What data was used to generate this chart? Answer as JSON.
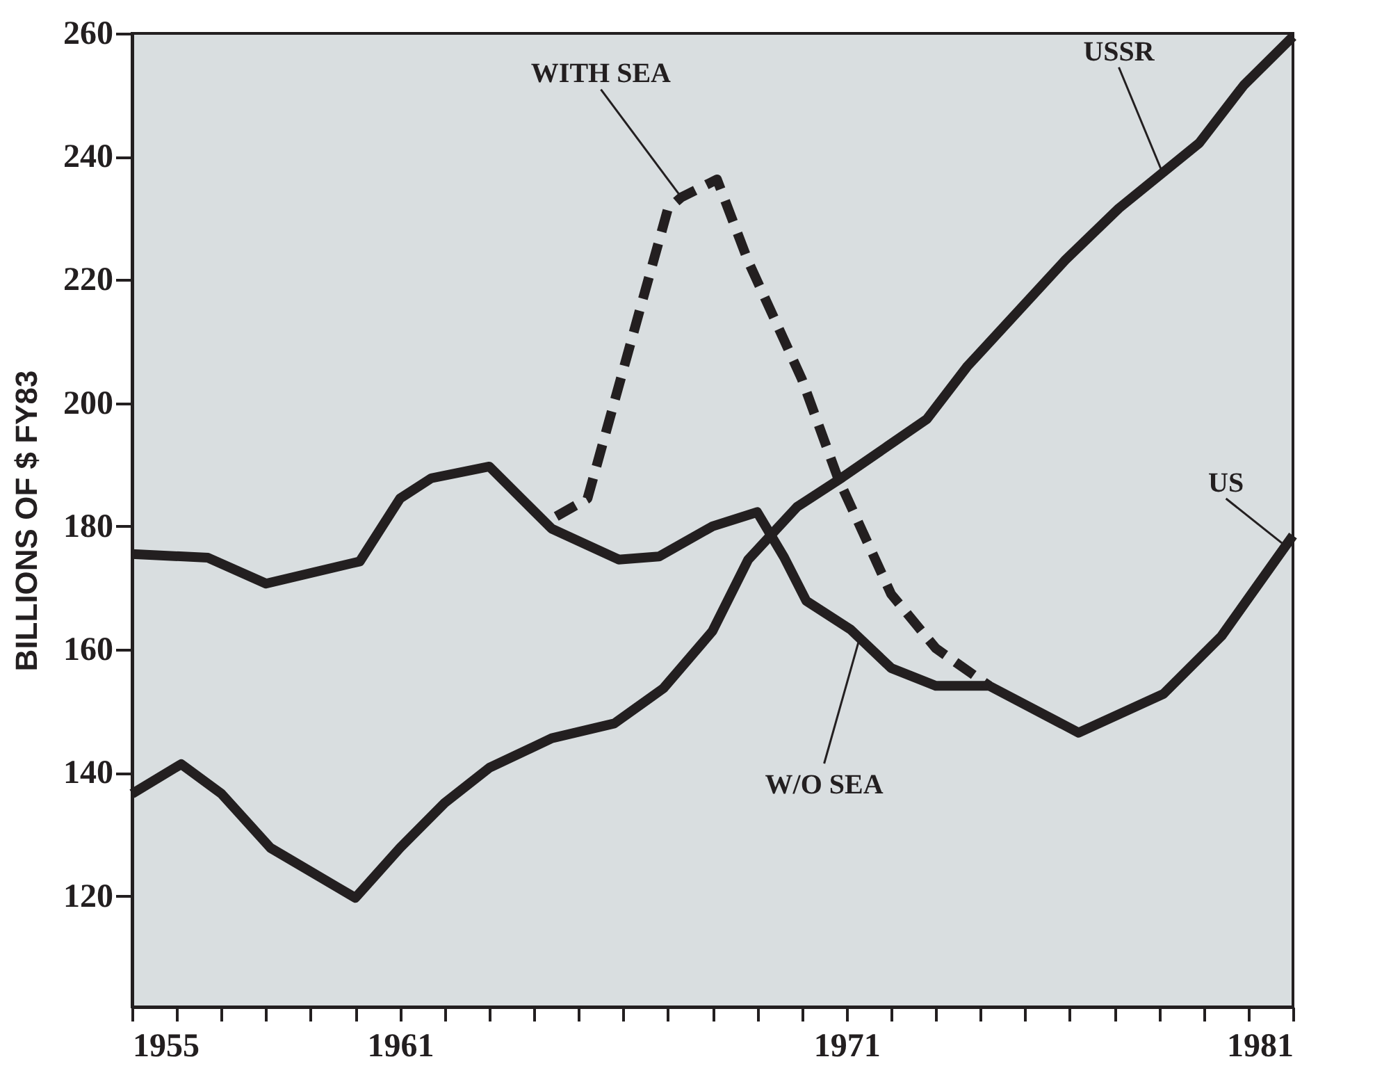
{
  "chart_data": {
    "type": "line",
    "ylabel": "BILLIONS OF $ FY83",
    "xlim": [
      1955,
      1981
    ],
    "ylim": [
      102,
      260
    ],
    "yticks": [
      120,
      140,
      160,
      180,
      200,
      220,
      240,
      260
    ],
    "xticks": [
      1955,
      {
        "value": 1956,
        "label": null
      },
      {
        "value": 1957,
        "label": null
      },
      {
        "value": 1958,
        "label": null
      },
      {
        "value": 1959,
        "label": null
      },
      {
        "value": 1960,
        "label": null
      },
      1961,
      {
        "value": 1962,
        "label": null
      },
      {
        "value": 1963,
        "label": null
      },
      {
        "value": 1964,
        "label": null
      },
      {
        "value": 1965,
        "label": null
      },
      {
        "value": 1966,
        "label": null
      },
      {
        "value": 1967,
        "label": null
      },
      {
        "value": 1968,
        "label": null
      },
      {
        "value": 1969,
        "label": null
      },
      {
        "value": 1970,
        "label": null
      },
      1971,
      {
        "value": 1972,
        "label": null
      },
      {
        "value": 1973,
        "label": null
      },
      {
        "value": 1974,
        "label": null
      },
      {
        "value": 1975,
        "label": null
      },
      {
        "value": 1976,
        "label": null
      },
      {
        "value": 1977,
        "label": null
      },
      {
        "value": 1978,
        "label": null
      },
      {
        "value": 1979,
        "label": null
      },
      {
        "value": 1980,
        "label": null
      },
      1981
    ],
    "grid": false,
    "marker": "none",
    "series": [
      {
        "color": "#231f20",
        "line_style": "solid",
        "x": [
          1955,
          1956.7,
          1958.0,
          1960.1,
          1961.0,
          1961.7,
          1963.0,
          1964.4,
          1965.9,
          1966.8,
          1968.0,
          1969.0,
          1969.6,
          1970.1,
          1971.1,
          1972.0,
          1973.0,
          1974.2,
          1976.2,
          1978.1,
          1979.4,
          1981
        ],
        "values": [
          175.5,
          174.9,
          170.7,
          174.3,
          184.5,
          187.8,
          189.7,
          179.6,
          174.6,
          175.1,
          180,
          182.3,
          175,
          167.9,
          163.2,
          157,
          154.1,
          154.1,
          146.5,
          152.8,
          162.2,
          178.5
        ]
      },
      {
        "color": "#231f20",
        "line_style": "dashed",
        "x": [
          1964.5,
          1965.2,
          1967.0,
          1967.3,
          1968.1,
          1968.8,
          1970.0,
          1970.8,
          1972.0,
          1973.0,
          1974.2
        ],
        "values": [
          181.6,
          184.5,
          231.5,
          233.4,
          236.3,
          223,
          203.9,
          188,
          169,
          160.2,
          154.1
        ]
      },
      {
        "color": "#231f20",
        "line_style": "solid",
        "x": [
          1955,
          1956.1,
          1957.0,
          1958.1,
          1960.0,
          1961.0,
          1962.0,
          1963.0,
          1964.4,
          1965.8,
          1966.9,
          1968.0,
          1968.8,
          1969.9,
          1970.9,
          1972.8,
          1973.7,
          1975.9,
          1977.1,
          1978.9,
          1979.9,
          1981
        ],
        "values": [
          136.6,
          141.4,
          136.6,
          127.8,
          119.7,
          127.8,
          135.1,
          140.8,
          145.6,
          148,
          153.7,
          163,
          174.6,
          183.2,
          187.9,
          197.4,
          205.9,
          223.2,
          231.6,
          242.2,
          251.6,
          259.5
        ]
      }
    ],
    "annotations": [
      {
        "text": "WITH SEA",
        "x": 1967.3,
        "y": 233.4
      },
      {
        "text": "USSR",
        "x": 1978.1,
        "y": 237
      },
      {
        "text": "US",
        "x": 1980.8,
        "y": 177
      },
      {
        "text": "W/O SEA",
        "x": 1971.3,
        "y": 162
      }
    ]
  }
}
